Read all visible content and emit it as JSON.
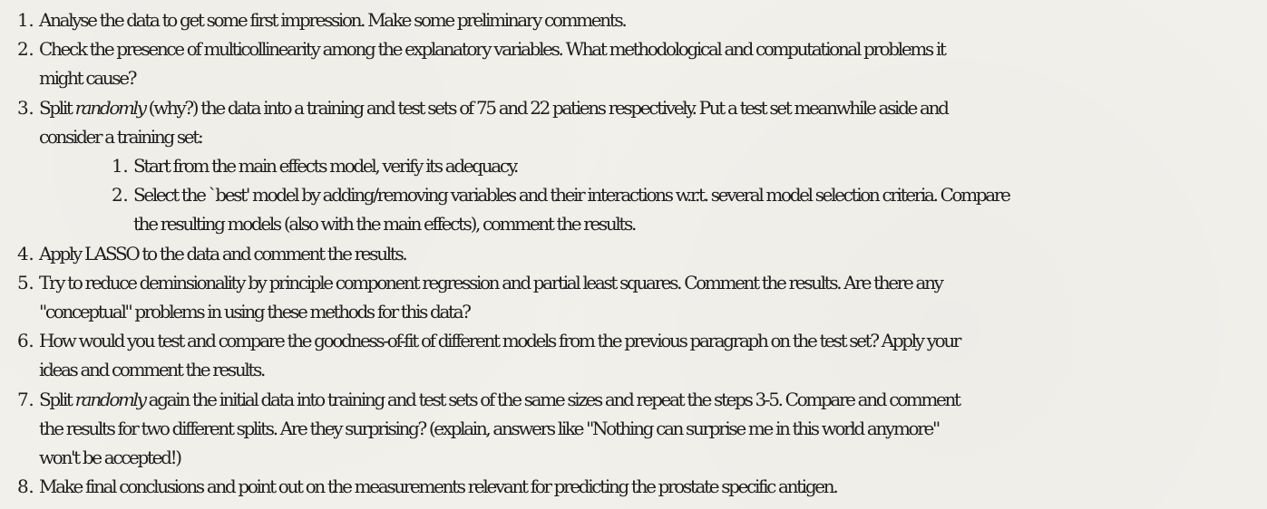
{
  "items": [
    {
      "num": "1.",
      "lines": [
        "Analyse the data to get some first impression. Make some preliminary comments."
      ]
    },
    {
      "num": "2.",
      "lines": [
        "Check the presence of multicollinearity among the explanatory variables. What methodological and computational problems it",
        "might cause?"
      ]
    },
    {
      "num": "3.",
      "line1_a": "Split ",
      "line1_em": "randomly",
      "line1_b": " (why?) the data into a training and test sets of 75 and 22 patiens respectively. Put a test set meanwhile aside and",
      "line2": "consider a training set:",
      "subitems": [
        {
          "num": "1.",
          "lines": [
            "Start from the main effects model, verify its adequacy."
          ]
        },
        {
          "num": "2.",
          "lines": [
            "Select the `best' model by adding/removing variables and their interactions w.r.t. several model selection criteria. Compare",
            "the resulting models (also with the main effects), comment the results."
          ]
        }
      ]
    },
    {
      "num": "4.",
      "lines": [
        "Apply LASSO to the data and comment the results."
      ]
    },
    {
      "num": "5.",
      "lines": [
        "Try to reduce deminsionality by principle component regression and partial least squares. Comment the results. Are there any",
        "\"conceptual\" problems in using these methods for this data?"
      ]
    },
    {
      "num": "6.",
      "lines": [
        "How would you test and compare the goodness-of-fit of different models from the previous paragraph on the test set? Apply your",
        "ideas and comment the results."
      ]
    },
    {
      "num": "7.",
      "line1_a": "Split ",
      "line1_em": "randomly",
      "line1_b": " again the initial data into training and test sets of the same sizes and repeat the steps 3-5. Compare and comment",
      "line2": "the results for two different splits. Are they surprising? (explain, answers like \"Nothing can surprise me in this world anymore\"",
      "line3": "won't be accepted!)"
    },
    {
      "num": "8.",
      "lines": [
        "Make final conclusions and point out on the measurements relevant for predicting the prostate specific antigen."
      ]
    }
  ]
}
